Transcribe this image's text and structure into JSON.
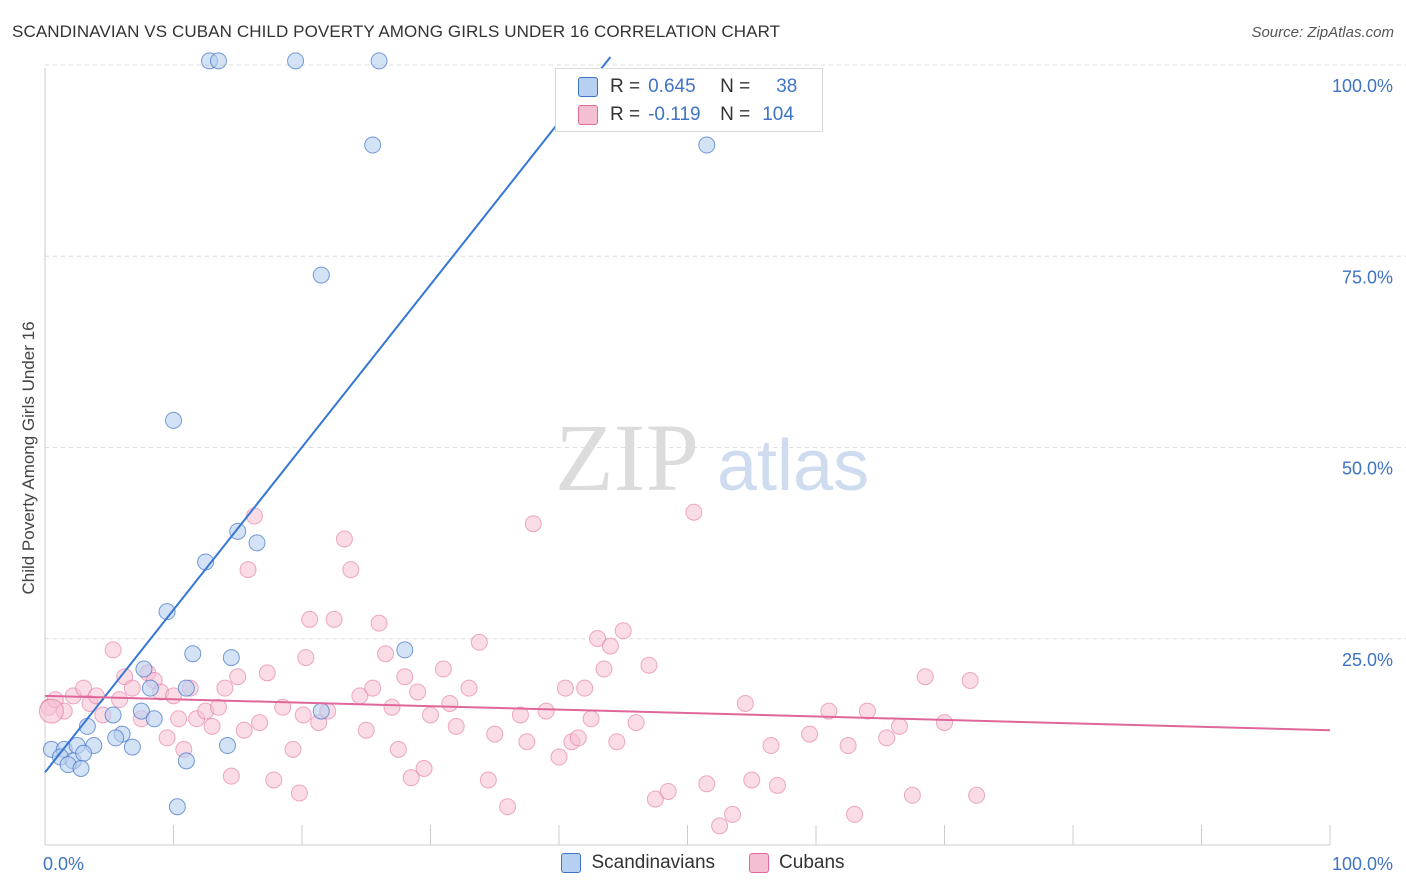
{
  "title": "SCANDINAVIAN VS CUBAN CHILD POVERTY AMONG GIRLS UNDER 16 CORRELATION CHART",
  "source": "Source: ZipAtlas.com",
  "watermark": {
    "zip": "ZIP",
    "atlas": "atlas"
  },
  "colors": {
    "blue": "#3f73c4",
    "blue_fill": "#b7cff0",
    "blue_line": "#3577d4",
    "pink": "#e06a9a",
    "pink_fill": "#f5bfd3",
    "pink_line": "#e0679a",
    "grid": "#dddddd"
  },
  "legend": {
    "rows": [
      {
        "r_label": "R =",
        "r_value": "0.645",
        "n_label": "N =",
        "n_value": "38"
      },
      {
        "r_label": "R =",
        "r_value": "-0.119",
        "n_label": "N =",
        "n_value": "104"
      }
    ]
  },
  "bottom_legend": [
    "Scandinavians",
    "Cubans"
  ],
  "chart_data": {
    "type": "scatter",
    "title": "SCANDINAVIAN VS CUBAN CHILD POVERTY AMONG GIRLS UNDER 16 CORRELATION CHART",
    "xlabel": "",
    "ylabel": "Child Poverty Among Girls Under 16",
    "xlim": [
      0,
      100
    ],
    "ylim": [
      0,
      105
    ],
    "x_tick_labels": [
      "0.0%",
      "100.0%"
    ],
    "y_ticks": [
      25,
      50,
      75,
      100
    ],
    "y_tick_labels": [
      "25.0%",
      "50.0%",
      "75.0%",
      "100.0%"
    ],
    "series": [
      {
        "name": "Scandinavians",
        "r": 0.645,
        "n": 38,
        "trend": {
          "x": [
            0,
            44
          ],
          "y": [
            9.5,
            103
          ]
        },
        "points": [
          [
            12.8,
            102.5
          ],
          [
            13.5,
            102.5
          ],
          [
            19.5,
            102.5
          ],
          [
            26.0,
            102.5
          ],
          [
            25.5,
            91.5
          ],
          [
            51.5,
            91.5
          ],
          [
            21.5,
            74.5
          ],
          [
            10.0,
            55.5
          ],
          [
            15.0,
            41.0
          ],
          [
            16.5,
            39.5
          ],
          [
            12.5,
            37.0
          ],
          [
            9.5,
            30.5
          ],
          [
            14.5,
            24.5
          ],
          [
            11.5,
            25.0
          ],
          [
            28.0,
            25.5
          ],
          [
            7.7,
            23.0
          ],
          [
            8.2,
            20.5
          ],
          [
            11.0,
            20.5
          ],
          [
            5.3,
            17.0
          ],
          [
            7.5,
            17.5
          ],
          [
            8.5,
            16.5
          ],
          [
            21.5,
            17.5
          ],
          [
            3.3,
            15.5
          ],
          [
            6.0,
            14.5
          ],
          [
            5.5,
            14.0
          ],
          [
            0.5,
            12.5
          ],
          [
            1.5,
            12.5
          ],
          [
            2.5,
            13.0
          ],
          [
            3.8,
            13.0
          ],
          [
            6.8,
            12.8
          ],
          [
            14.2,
            13.0
          ],
          [
            1.2,
            11.5
          ],
          [
            2.2,
            11.0
          ],
          [
            3.0,
            12.0
          ],
          [
            1.8,
            10.5
          ],
          [
            2.8,
            10.0
          ],
          [
            11.0,
            11.0
          ],
          [
            10.3,
            5.0
          ]
        ]
      },
      {
        "name": "Cubans",
        "r": -0.119,
        "n": 104,
        "trend": {
          "x": [
            0,
            100
          ],
          "y": [
            19.5,
            15.0
          ]
        },
        "points": [
          [
            0.3,
            18.0
          ],
          [
            0.8,
            19.0
          ],
          [
            1.5,
            17.5
          ],
          [
            2.2,
            19.5
          ],
          [
            3.0,
            20.5
          ],
          [
            3.5,
            18.5
          ],
          [
            4.0,
            19.5
          ],
          [
            4.5,
            17.0
          ],
          [
            5.3,
            25.5
          ],
          [
            5.8,
            19.0
          ],
          [
            6.2,
            22.0
          ],
          [
            6.8,
            20.5
          ],
          [
            7.5,
            16.5
          ],
          [
            8.0,
            22.5
          ],
          [
            8.5,
            21.5
          ],
          [
            9.0,
            20.0
          ],
          [
            9.5,
            14.0
          ],
          [
            10.0,
            19.5
          ],
          [
            10.4,
            16.5
          ],
          [
            10.8,
            12.5
          ],
          [
            11.3,
            20.5
          ],
          [
            11.8,
            16.5
          ],
          [
            12.5,
            17.5
          ],
          [
            13.0,
            15.5
          ],
          [
            13.5,
            18.0
          ],
          [
            14.0,
            20.5
          ],
          [
            14.5,
            9.0
          ],
          [
            15.0,
            22.0
          ],
          [
            15.5,
            15.0
          ],
          [
            15.8,
            36.0
          ],
          [
            16.3,
            43.0
          ],
          [
            16.7,
            16.0
          ],
          [
            17.3,
            22.5
          ],
          [
            17.8,
            8.5
          ],
          [
            18.5,
            18.0
          ],
          [
            19.3,
            12.5
          ],
          [
            19.8,
            6.8
          ],
          [
            20.1,
            17.0
          ],
          [
            20.3,
            24.5
          ],
          [
            20.6,
            29.5
          ],
          [
            21.3,
            16.0
          ],
          [
            22.0,
            17.5
          ],
          [
            22.5,
            29.5
          ],
          [
            23.3,
            40.0
          ],
          [
            23.8,
            36.0
          ],
          [
            24.5,
            19.5
          ],
          [
            25.0,
            15.0
          ],
          [
            25.5,
            20.5
          ],
          [
            26.0,
            29.0
          ],
          [
            26.5,
            25.0
          ],
          [
            27.0,
            18.0
          ],
          [
            27.5,
            12.5
          ],
          [
            28.0,
            22.0
          ],
          [
            28.5,
            8.8
          ],
          [
            29.0,
            20.0
          ],
          [
            29.5,
            10.0
          ],
          [
            30.0,
            17.0
          ],
          [
            31.0,
            23.0
          ],
          [
            31.5,
            18.5
          ],
          [
            32.0,
            15.5
          ],
          [
            33.0,
            20.5
          ],
          [
            33.8,
            26.5
          ],
          [
            34.5,
            8.5
          ],
          [
            35.0,
            14.5
          ],
          [
            36.0,
            5.0
          ],
          [
            37.0,
            17.0
          ],
          [
            37.5,
            13.5
          ],
          [
            38.0,
            42.0
          ],
          [
            39.0,
            17.5
          ],
          [
            40.0,
            11.5
          ],
          [
            40.5,
            20.5
          ],
          [
            41.0,
            13.5
          ],
          [
            41.5,
            14.0
          ],
          [
            42.0,
            20.5
          ],
          [
            42.5,
            16.5
          ],
          [
            43.0,
            27.0
          ],
          [
            43.5,
            23.0
          ],
          [
            44.0,
            26.0
          ],
          [
            44.5,
            13.5
          ],
          [
            45.0,
            28.0
          ],
          [
            46.0,
            16.0
          ],
          [
            47.0,
            23.5
          ],
          [
            47.5,
            6.0
          ],
          [
            48.5,
            7.0
          ],
          [
            50.5,
            43.5
          ],
          [
            51.5,
            8.0
          ],
          [
            52.5,
            2.5
          ],
          [
            53.5,
            4.0
          ],
          [
            54.5,
            18.5
          ],
          [
            55.0,
            8.5
          ],
          [
            56.5,
            13.0
          ],
          [
            57.0,
            7.8
          ],
          [
            59.5,
            14.5
          ],
          [
            61.0,
            17.5
          ],
          [
            62.5,
            13.0
          ],
          [
            63.0,
            4.0
          ],
          [
            64.0,
            17.5
          ],
          [
            65.5,
            14.0
          ],
          [
            66.5,
            15.5
          ],
          [
            67.5,
            6.5
          ],
          [
            68.5,
            22.0
          ],
          [
            70.0,
            16.0
          ],
          [
            72.0,
            21.5
          ],
          [
            72.5,
            6.5
          ]
        ]
      }
    ]
  }
}
